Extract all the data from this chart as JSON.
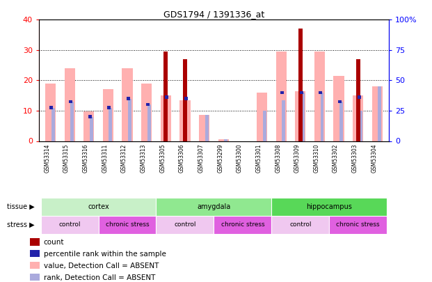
{
  "title": "GDS1794 / 1391336_at",
  "samples": [
    "GSM53314",
    "GSM53315",
    "GSM53316",
    "GSM53311",
    "GSM53312",
    "GSM53313",
    "GSM53305",
    "GSM53306",
    "GSM53307",
    "GSM53299",
    "GSM53300",
    "GSM53301",
    "GSM53308",
    "GSM53309",
    "GSM53310",
    "GSM53302",
    "GSM53303",
    "GSM53304"
  ],
  "count_values": [
    0,
    0,
    0,
    0,
    0,
    0,
    29.5,
    27,
    0,
    0,
    0,
    0,
    0,
    37,
    0,
    0,
    27,
    0
  ],
  "pink_bar_top": [
    19,
    24,
    9.8,
    17,
    24,
    19,
    15,
    13.5,
    8.5,
    0.5,
    0,
    16,
    29.5,
    16.5,
    29.5,
    21.5,
    15,
    18
  ],
  "blue_dot_y": [
    11,
    13,
    8,
    11,
    14,
    12,
    14.5,
    14,
    0,
    0,
    0,
    0,
    16,
    16,
    16,
    13,
    14.5,
    0
  ],
  "rank_absent": [
    11,
    13,
    8,
    11,
    14,
    12,
    0,
    0,
    8.5,
    0.5,
    0,
    10,
    13.5,
    16,
    16,
    13,
    10,
    18
  ],
  "ylim_left": [
    0,
    40
  ],
  "ylim_right": [
    0,
    100
  ],
  "yticks_left": [
    0,
    10,
    20,
    30,
    40
  ],
  "yticks_right": [
    0,
    25,
    50,
    75,
    100
  ],
  "tissue_groups": [
    {
      "label": "cortex",
      "start": 0,
      "end": 6,
      "color": "#c8f0c8"
    },
    {
      "label": "amygdala",
      "start": 6,
      "end": 12,
      "color": "#90e890"
    },
    {
      "label": "hippocampus",
      "start": 12,
      "end": 18,
      "color": "#58d858"
    }
  ],
  "stress_groups": [
    {
      "label": "control",
      "start": 0,
      "end": 3,
      "color": "#f0c8f0"
    },
    {
      "label": "chronic stress",
      "start": 3,
      "end": 6,
      "color": "#e060e0"
    },
    {
      "label": "control",
      "start": 6,
      "end": 9,
      "color": "#f0c8f0"
    },
    {
      "label": "chronic stress",
      "start": 9,
      "end": 12,
      "color": "#e060e0"
    },
    {
      "label": "control",
      "start": 12,
      "end": 15,
      "color": "#f0c8f0"
    },
    {
      "label": "chronic stress",
      "start": 15,
      "end": 18,
      "color": "#e060e0"
    }
  ],
  "color_count": "#aa0000",
  "color_pink": "#ffb0b0",
  "color_blue_dot": "#2222aa",
  "color_light_blue": "#aaaadd",
  "legend_items": [
    {
      "label": "count",
      "color": "#aa0000"
    },
    {
      "label": "percentile rank within the sample",
      "color": "#2222aa"
    },
    {
      "label": "value, Detection Call = ABSENT",
      "color": "#ffb0b0"
    },
    {
      "label": "rank, Detection Call = ABSENT",
      "color": "#aaaadd"
    }
  ]
}
